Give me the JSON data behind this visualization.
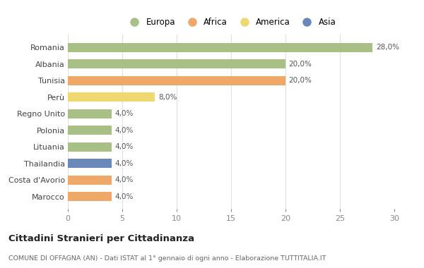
{
  "categories": [
    "Marocco",
    "Costa d'Avorio",
    "Thailandia",
    "Lituania",
    "Polonia",
    "Regno Unito",
    "Perù",
    "Tunisia",
    "Albania",
    "Romania"
  ],
  "values": [
    4.0,
    4.0,
    4.0,
    4.0,
    4.0,
    4.0,
    8.0,
    20.0,
    20.0,
    28.0
  ],
  "colors": [
    "#f0a868",
    "#f0a868",
    "#6b88bb",
    "#a8bf85",
    "#a8bf85",
    "#a8bf85",
    "#f0d870",
    "#f0a868",
    "#a8bf85",
    "#a8bf85"
  ],
  "labels": [
    "4,0%",
    "4,0%",
    "4,0%",
    "4,0%",
    "4,0%",
    "4,0%",
    "8,0%",
    "20,0%",
    "20,0%",
    "28,0%"
  ],
  "legend_labels": [
    "Europa",
    "Africa",
    "America",
    "Asia"
  ],
  "legend_colors": [
    "#a8bf85",
    "#f0a868",
    "#f0d870",
    "#6b88bb"
  ],
  "title": "Cittadini Stranieri per Cittadinanza",
  "subtitle": "COMUNE DI OFFAGNA (AN) - Dati ISTAT al 1° gennaio di ogni anno - Elaborazione TUTTITALIA.IT",
  "xlim": [
    0,
    30
  ],
  "xticks": [
    0,
    5,
    10,
    15,
    20,
    25,
    30
  ],
  "bg_color": "#ffffff",
  "grid_color": "#e0e0e0",
  "bar_height": 0.55
}
